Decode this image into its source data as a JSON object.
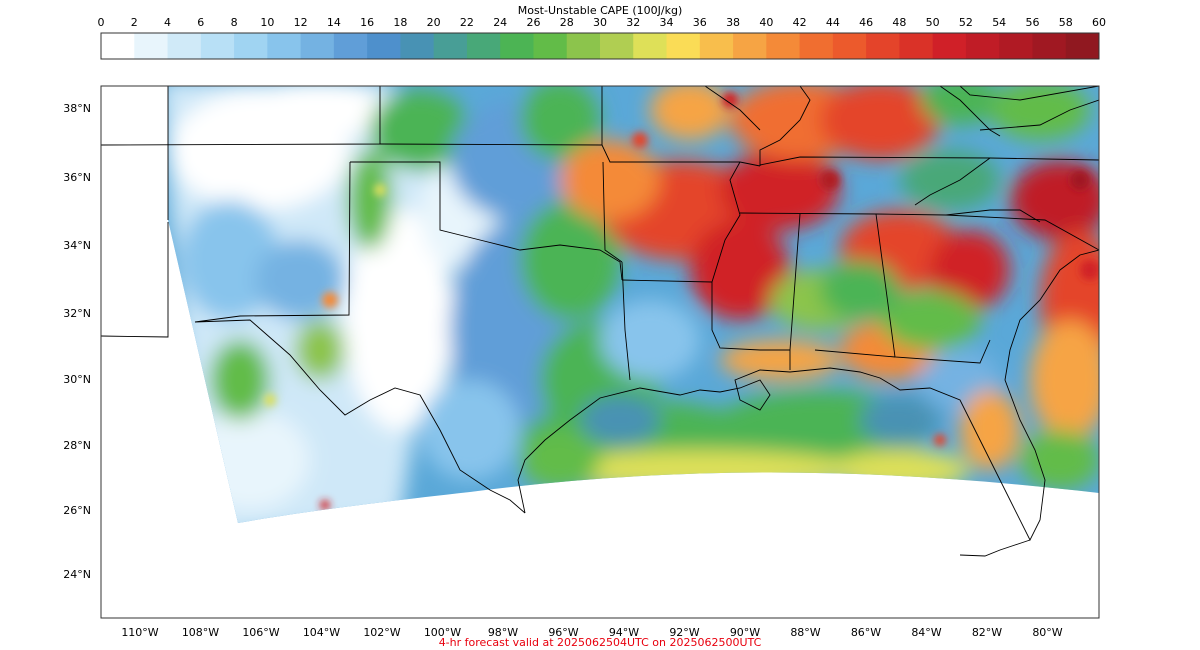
{
  "colorbar": {
    "title": "Most-Unstable CAPE (100J/kg)",
    "ticks": [
      "0",
      "2",
      "4",
      "6",
      "8",
      "10",
      "12",
      "14",
      "16",
      "18",
      "20",
      "22",
      "24",
      "26",
      "28",
      "30",
      "32",
      "34",
      "36",
      "38",
      "40",
      "42",
      "44",
      "46",
      "48",
      "50",
      "52",
      "54",
      "56",
      "58",
      "60"
    ],
    "colors": [
      "#ffffff",
      "#e8f5fc",
      "#d0eaf8",
      "#b8e0f6",
      "#a0d4f2",
      "#88c4ec",
      "#74b2e2",
      "#609ed8",
      "#4e90cc",
      "#4892b4",
      "#489e96",
      "#48a878",
      "#4cb454",
      "#62bc48",
      "#8cc44c",
      "#b0ce52",
      "#dee058",
      "#fadc56",
      "#f8be4c",
      "#f6a444",
      "#f48a38",
      "#f06e30",
      "#ec5a2c",
      "#e4442a",
      "#da3228",
      "#d02028",
      "#c01c26",
      "#b01a24",
      "#a01822",
      "#901820"
    ]
  },
  "map": {
    "lat_labels": [
      "38°N",
      "36°N",
      "34°N",
      "32°N",
      "30°N",
      "28°N",
      "26°N",
      "24°N"
    ],
    "lon_labels": [
      "110°W",
      "108°W",
      "106°W",
      "104°W",
      "102°W",
      "100°W",
      "98°W",
      "96°W",
      "94°W",
      "92°W",
      "90°W",
      "88°W",
      "86°W",
      "84°W",
      "82°W",
      "80°W"
    ],
    "ocean_color": "#ffffff",
    "border_color": "#000000"
  },
  "footer": {
    "text": "4-hr forecast valid at 2025062504UTC on 2025062500UTC",
    "color": "#e8000e"
  }
}
